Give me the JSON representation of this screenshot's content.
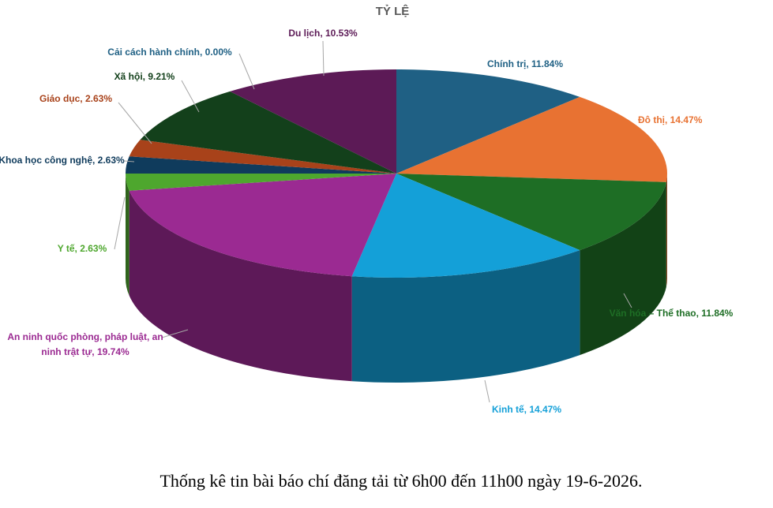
{
  "chart_data": {
    "type": "pie3d",
    "title": "TỶ LỆ",
    "caption": "Thống kê tin bài báo chí đăng tải từ 6h00 đến 11h00 ngày 19-6-2026.",
    "values": [
      11.84,
      14.47,
      11.84,
      14.47,
      19.74,
      2.63,
      2.63,
      2.63,
      9.21,
      0.0,
      10.53
    ],
    "value_labels": [
      "Chính trị, 11.84%",
      "Đô thị, 14.47%",
      "Văn hóa – Thể thao, 11.84%",
      "Kinh tế, 14.47%",
      "An ninh quốc phòng, pháp luật, an ninh trật tự, 19.74%",
      "Y tế, 2.63%",
      "Khoa học công nghệ, 2.63%",
      "Giáo dục, 2.63%",
      "Xã hội, 9.21%",
      "Cải cách hành chính, 0.00%",
      "Du lịch, 10.53%"
    ],
    "colors": [
      "#1f6084",
      "#e87232",
      "#1e6e25",
      "#14a0d8",
      "#9b2a92",
      "#4ea72e",
      "#0f3b5c",
      "#a8421a",
      "#13401b",
      "#404040",
      "#5c1a56"
    ]
  }
}
